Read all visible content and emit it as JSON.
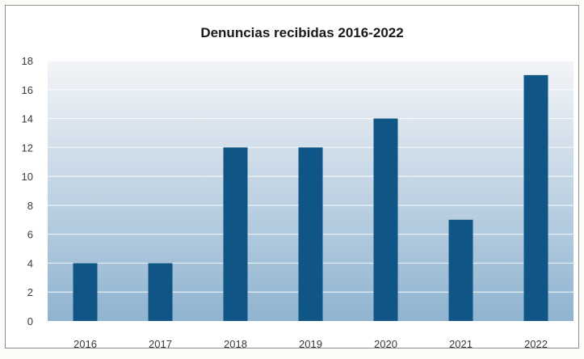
{
  "chart_data": {
    "type": "bar",
    "title": "Denuncias recibidas 2016-2022",
    "categories": [
      "2016",
      "2017",
      "2018",
      "2019",
      "2020",
      "2021",
      "2022"
    ],
    "values": [
      4,
      4,
      12,
      12,
      14,
      7,
      17
    ],
    "xlabel": "",
    "ylabel": "",
    "ylim": [
      0,
      18
    ],
    "yticks": [
      0,
      2,
      4,
      6,
      8,
      10,
      12,
      14,
      16,
      18
    ],
    "grid": true,
    "legend": "none",
    "colors": {
      "bar": "#0f5586",
      "plot_bg_top": "#f3f5f8",
      "plot_bg_bottom": "#8fb3d0",
      "gridline": "#ffffff",
      "border": "#8e8e8e"
    }
  }
}
